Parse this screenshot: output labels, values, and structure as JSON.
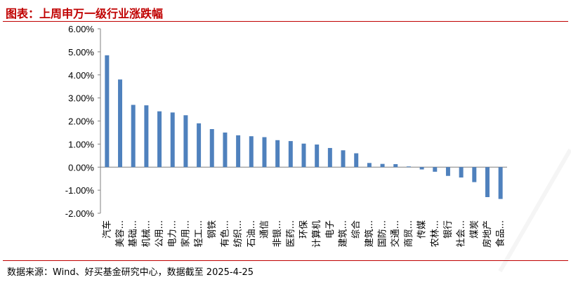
{
  "header": {
    "title": "图表：上周申万一级行业涨跌幅"
  },
  "footer": {
    "source": "数据来源：Wind、好买基金研究中心，数据截至 2025-4-25"
  },
  "colors": {
    "bar": "#4f81bd",
    "accent": "#c00000",
    "axis": "#808080"
  },
  "chart_data": {
    "type": "bar",
    "title": "",
    "xlabel": "",
    "ylabel": "",
    "ylim": [
      -0.02,
      0.06
    ],
    "yticks": [
      0.06,
      0.05,
      0.04,
      0.03,
      0.02,
      0.01,
      0.0,
      -0.01,
      -0.02
    ],
    "ytick_labels": [
      "6.00%",
      "5.00%",
      "4.00%",
      "3.00%",
      "2.00%",
      "1.00%",
      "0.00%",
      "-1.00%",
      "-2.00%"
    ],
    "grid": false,
    "legend": "none",
    "categories": [
      "汽车",
      "美容...",
      "基础...",
      "机械...",
      "公用...",
      "电力...",
      "家用...",
      "轻工...",
      "钢铁",
      "有色...",
      "纺织...",
      "石油...",
      "通信",
      "非银...",
      "医药...",
      "环保",
      "计算机",
      "电子",
      "建筑...",
      "综合",
      "建筑...",
      "国防...",
      "交通...",
      "商贸...",
      "传媒",
      "农林...",
      "银行",
      "社会...",
      "煤炭",
      "房地产",
      "食品..."
    ],
    "values": [
      0.0485,
      0.038,
      0.027,
      0.0268,
      0.0242,
      0.0237,
      0.0225,
      0.019,
      0.0165,
      0.015,
      0.0138,
      0.0134,
      0.013,
      0.0117,
      0.0113,
      0.0102,
      0.0098,
      0.0083,
      0.0073,
      0.006,
      0.0018,
      0.0014,
      0.0013,
      0.0003,
      -0.001,
      -0.002,
      -0.0038,
      -0.0045,
      -0.0065,
      -0.013,
      -0.0138
    ]
  }
}
